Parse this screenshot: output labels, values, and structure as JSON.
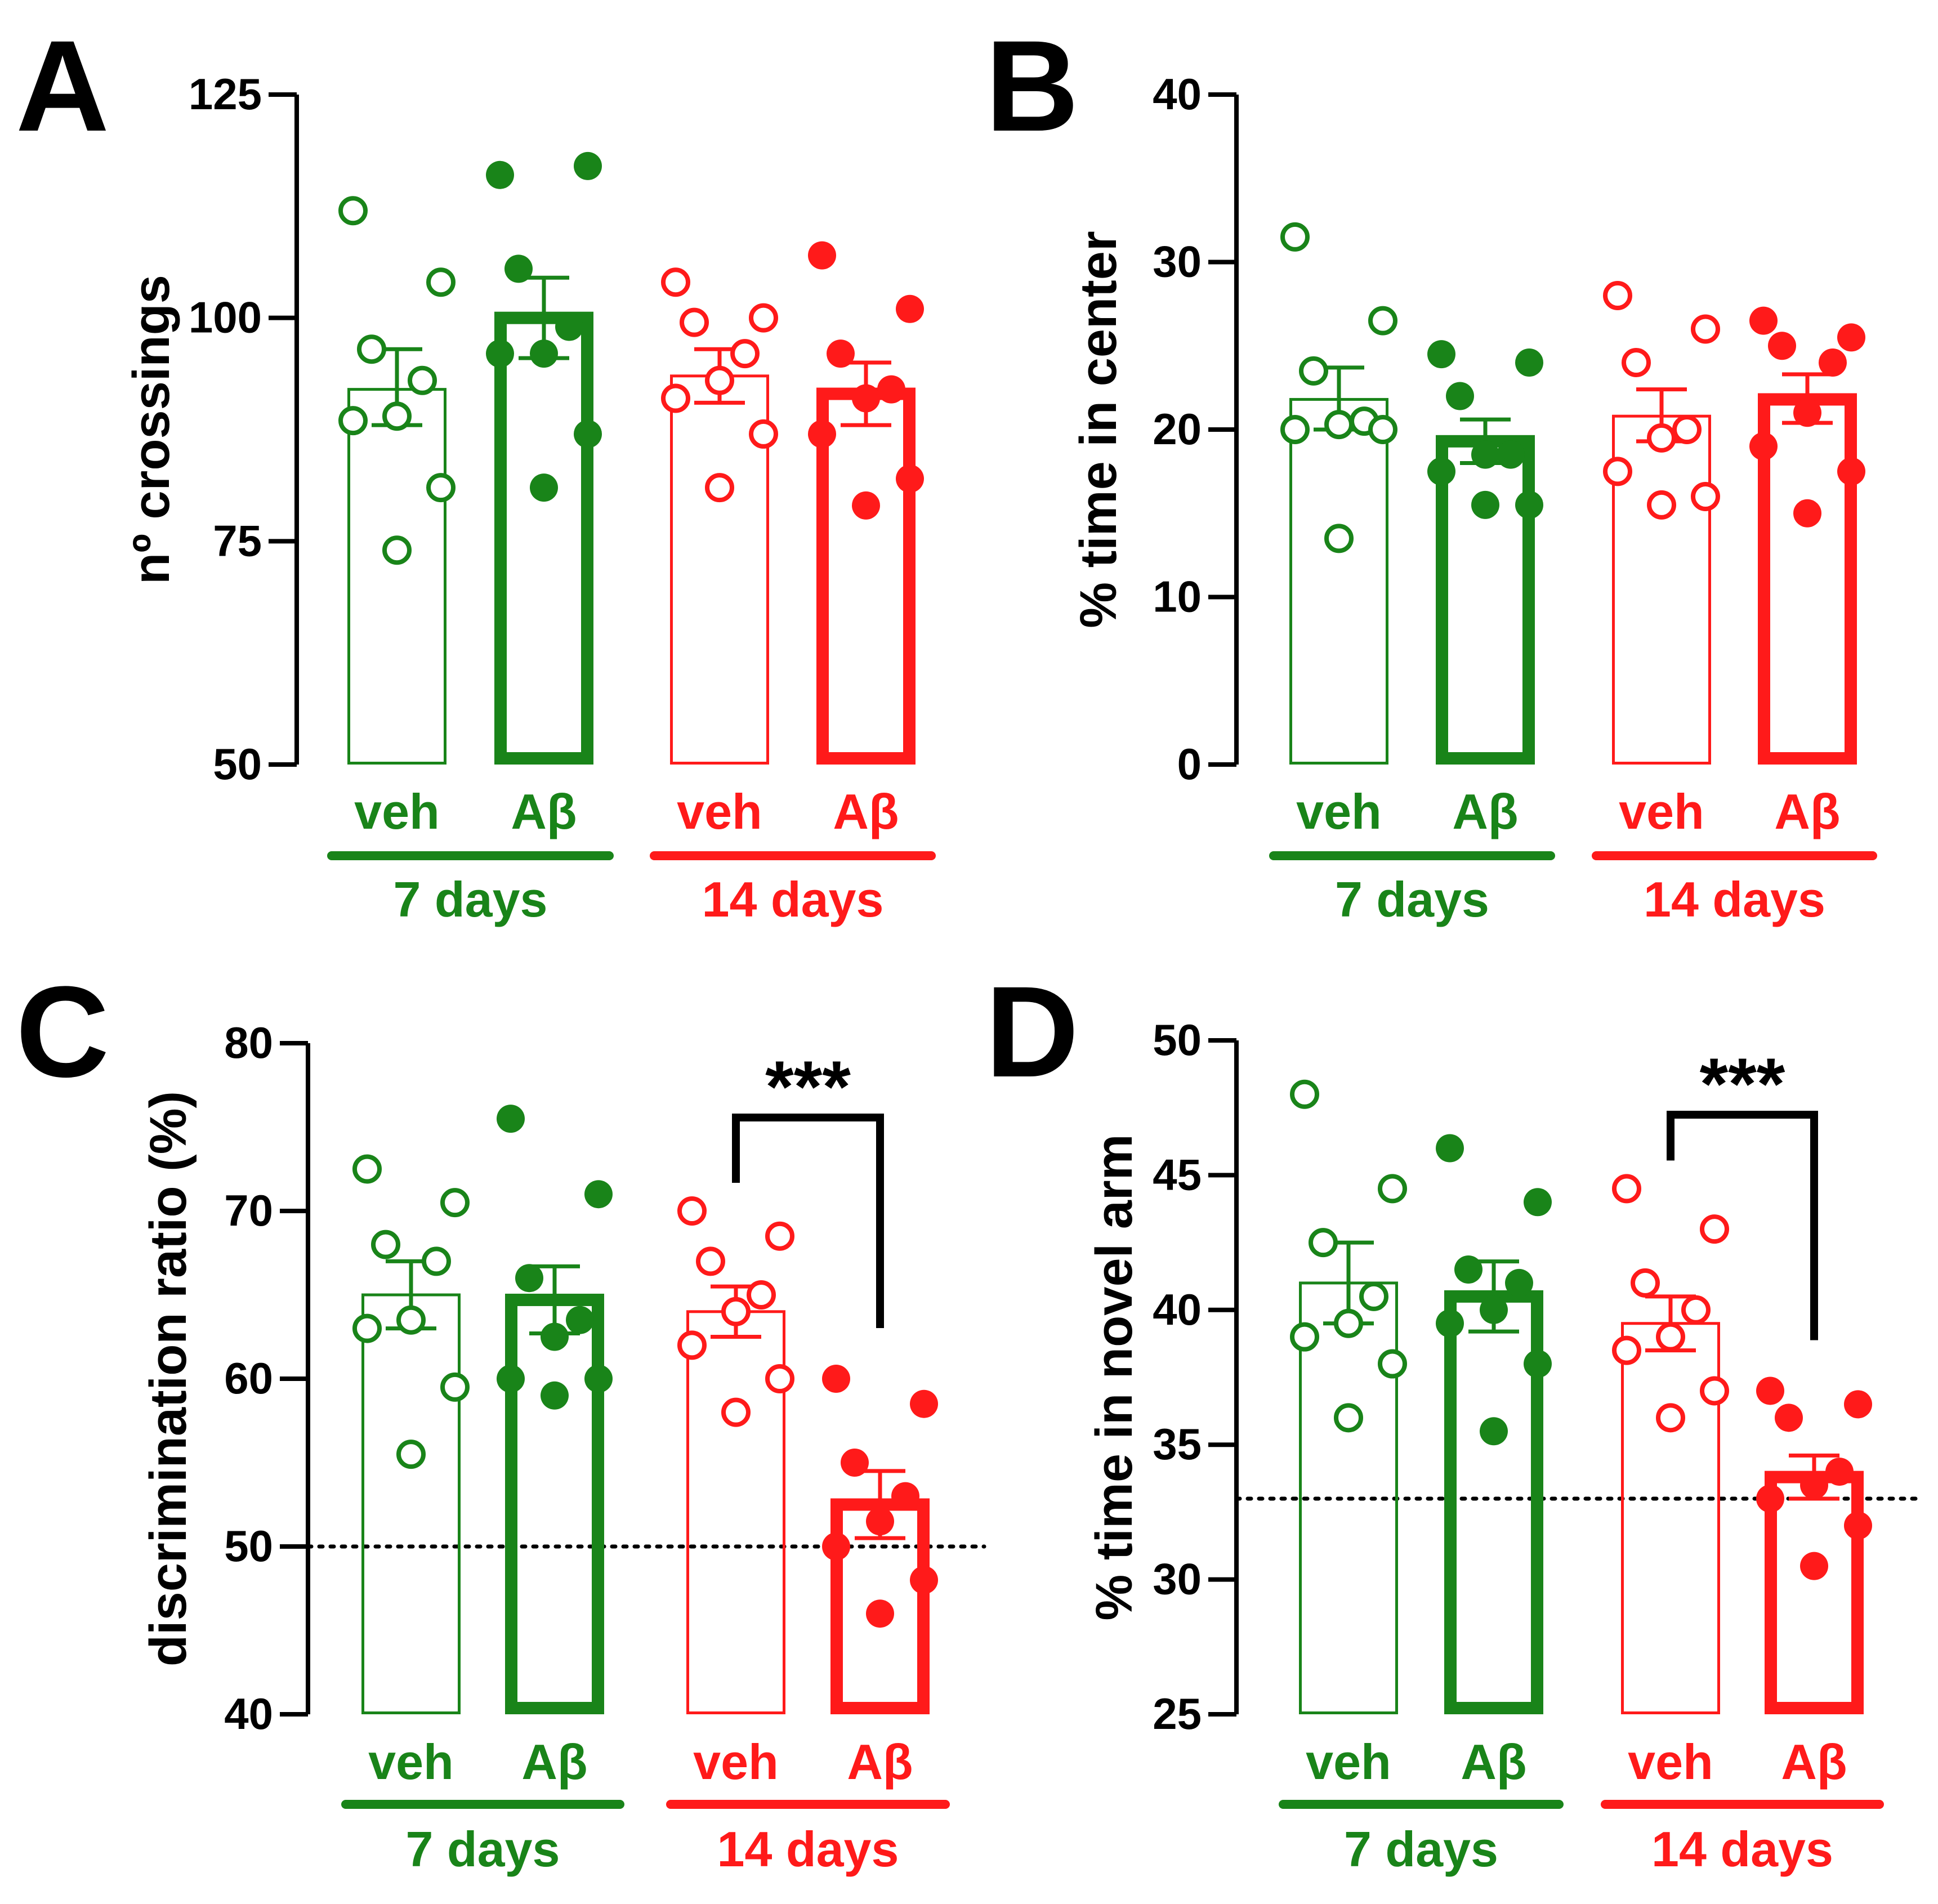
{
  "colors": {
    "day7": "#198419",
    "day14": "#ff1a1a",
    "axis": "#000000",
    "bracket": "#000000"
  },
  "chart_data": [
    {
      "panel": "A",
      "type": "bar",
      "title": "",
      "ylabel": "nº crossings",
      "ylim": [
        50,
        125
      ],
      "yticks": [
        50,
        75,
        100,
        125
      ],
      "reference_line": null,
      "categories": [
        "veh",
        "Aβ",
        "veh",
        "Aβ"
      ],
      "groups": [
        "7 days",
        "14 days"
      ],
      "bars": [
        {
          "group": "7 days",
          "label": "veh",
          "mean": 92,
          "sem_low": 88,
          "sem_high": 96.5,
          "filled": false,
          "points": [
            112,
            104,
            96.5,
            93,
            89,
            88.5,
            81,
            74
          ]
        },
        {
          "group": "7 days",
          "label": "Aβ",
          "mean": 100,
          "sem_low": 95.5,
          "sem_high": 104.5,
          "filled": true,
          "points": [
            116,
            117,
            105.5,
            99,
            96,
            96,
            87,
            81
          ]
        },
        {
          "group": "14 days",
          "label": "veh",
          "mean": 93.5,
          "sem_low": 90.5,
          "sem_high": 96.5,
          "filled": false,
          "points": [
            104,
            100,
            99.5,
            96,
            93,
            91,
            87,
            81
          ]
        },
        {
          "group": "14 days",
          "label": "Aβ",
          "mean": 91.5,
          "sem_low": 88,
          "sem_high": 95,
          "filled": true,
          "points": [
            107,
            101,
            96,
            92,
            91,
            87,
            82,
            79
          ]
        }
      ],
      "annotation": null
    },
    {
      "panel": "B",
      "type": "bar",
      "title": "",
      "ylabel": "% time in center",
      "ylim": [
        0,
        40
      ],
      "yticks": [
        0,
        10,
        20,
        30,
        40
      ],
      "reference_line": null,
      "categories": [
        "veh",
        "Aβ",
        "veh",
        "Aβ"
      ],
      "groups": [
        "7 days",
        "14 days"
      ],
      "bars": [
        {
          "group": "7 days",
          "label": "veh",
          "mean": 21.8,
          "sem_low": 20.0,
          "sem_high": 23.7,
          "filled": false,
          "points": [
            31.5,
            26.5,
            23.5,
            20.5,
            20.3,
            20.0,
            20.0,
            13.5
          ]
        },
        {
          "group": "7 days",
          "label": "Aβ",
          "mean": 19.3,
          "sem_low": 18.0,
          "sem_high": 20.6,
          "filled": true,
          "points": [
            24.5,
            24.0,
            22.0,
            18.5,
            18.5,
            17.5,
            15.5,
            15.5
          ]
        },
        {
          "group": "14 days",
          "label": "veh",
          "mean": 20.8,
          "sem_low": 19.3,
          "sem_high": 22.4,
          "filled": false,
          "points": [
            28.0,
            26.0,
            24.0,
            20.0,
            19.5,
            17.5,
            16.0,
            15.5
          ]
        },
        {
          "group": "14 days",
          "label": "Aβ",
          "mean": 21.8,
          "sem_low": 20.4,
          "sem_high": 23.3,
          "filled": true,
          "points": [
            26.5,
            25.5,
            25.0,
            24.0,
            21.0,
            19.0,
            17.5,
            15.0
          ]
        }
      ],
      "annotation": null
    },
    {
      "panel": "C",
      "type": "bar",
      "title": "",
      "ylabel": "discrimination ratio (%)",
      "ylim": [
        40,
        80
      ],
      "yticks": [
        40,
        50,
        60,
        70,
        80
      ],
      "reference_line": 50,
      "categories": [
        "veh",
        "Aβ",
        "veh",
        "Aβ"
      ],
      "groups": [
        "7 days",
        "14 days"
      ],
      "bars": [
        {
          "group": "7 days",
          "label": "veh",
          "mean": 65,
          "sem_low": 63,
          "sem_high": 67,
          "filled": false,
          "points": [
            72.5,
            70.5,
            68,
            67,
            63.5,
            63,
            59.5,
            55.5
          ]
        },
        {
          "group": "7 days",
          "label": "Aβ",
          "mean": 64.7,
          "sem_low": 62.7,
          "sem_high": 66.7,
          "filled": true,
          "points": [
            75.5,
            71,
            66,
            63.5,
            62.5,
            60,
            60,
            59
          ]
        },
        {
          "group": "14 days",
          "label": "veh",
          "mean": 64,
          "sem_low": 62.5,
          "sem_high": 65.5,
          "filled": false,
          "points": [
            70,
            68.5,
            67,
            65,
            64,
            62,
            60,
            58
          ]
        },
        {
          "group": "14 days",
          "label": "Aβ",
          "mean": 52.5,
          "sem_low": 50.5,
          "sem_high": 54.5,
          "filled": true,
          "points": [
            60,
            58.5,
            55,
            53,
            51.5,
            50,
            48,
            46
          ]
        }
      ],
      "annotation": {
        "text": "***",
        "from_bar": 2,
        "to_bar": 3
      }
    },
    {
      "panel": "D",
      "type": "bar",
      "title": "",
      "ylabel": "% time in novel arm",
      "ylim": [
        25,
        50
      ],
      "yticks": [
        25,
        30,
        35,
        40,
        45,
        50
      ],
      "reference_line": 33,
      "categories": [
        "veh",
        "Aβ",
        "veh",
        "Aβ"
      ],
      "groups": [
        "7 days",
        "14 days"
      ],
      "bars": [
        {
          "group": "7 days",
          "label": "veh",
          "mean": 41,
          "sem_low": 39.5,
          "sem_high": 42.5,
          "filled": false,
          "points": [
            48,
            44.5,
            42.5,
            40.5,
            39.5,
            39,
            38,
            36
          ]
        },
        {
          "group": "7 days",
          "label": "Aβ",
          "mean": 40.5,
          "sem_low": 39.2,
          "sem_high": 41.8,
          "filled": true,
          "points": [
            46,
            44,
            41.5,
            41,
            40,
            39.5,
            38,
            35.5
          ]
        },
        {
          "group": "14 days",
          "label": "veh",
          "mean": 39.5,
          "sem_low": 38.5,
          "sem_high": 40.5,
          "filled": false,
          "points": [
            44.5,
            43,
            41,
            40,
            39,
            38.5,
            37,
            36
          ]
        },
        {
          "group": "14 days",
          "label": "Aβ",
          "mean": 33.8,
          "sem_low": 33.0,
          "sem_high": 34.6,
          "filled": true,
          "points": [
            37,
            36.5,
            36,
            34,
            33.5,
            33,
            32,
            30.5
          ]
        }
      ],
      "annotation": {
        "text": "***",
        "from_bar": 2,
        "to_bar": 3
      }
    }
  ]
}
